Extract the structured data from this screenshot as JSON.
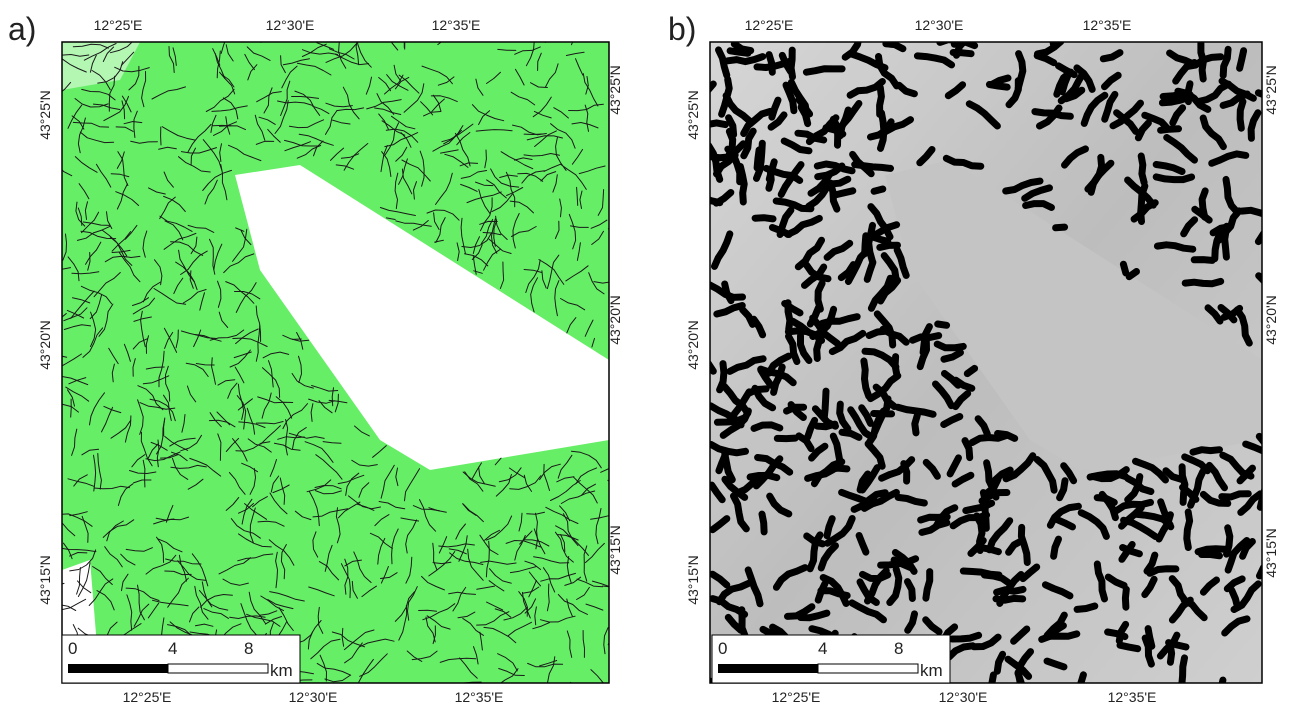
{
  "panels": [
    {
      "label": "a)",
      "top_ticks": [
        "12°25'E",
        "12°30'E",
        "12°35'E"
      ],
      "bottom_ticks": [
        "12°25'E",
        "12°30'E",
        "12°35'E"
      ],
      "left_ticks": [
        "43°25'N",
        "43°20'N",
        "43°15'N"
      ],
      "right_ticks": [
        "43°25'N",
        "43°20'N",
        "43°15'N"
      ],
      "scale": {
        "labels": [
          "0",
          "4",
          "8"
        ],
        "unit": "km"
      }
    },
    {
      "label": "b)",
      "top_ticks": [
        "12°25'E",
        "12°30'E",
        "12°35'E"
      ],
      "bottom_ticks": [
        "12°25'E",
        "12°30'E",
        "12°35'E"
      ],
      "left_ticks": [
        "43°25'N",
        "43°20'N",
        "43°15'N"
      ],
      "right_ticks": [
        "43°25'N",
        "43°20'N",
        "43°15'N"
      ],
      "scale": {
        "labels": [
          "0",
          "4",
          "8"
        ],
        "unit": "km"
      }
    }
  ]
}
